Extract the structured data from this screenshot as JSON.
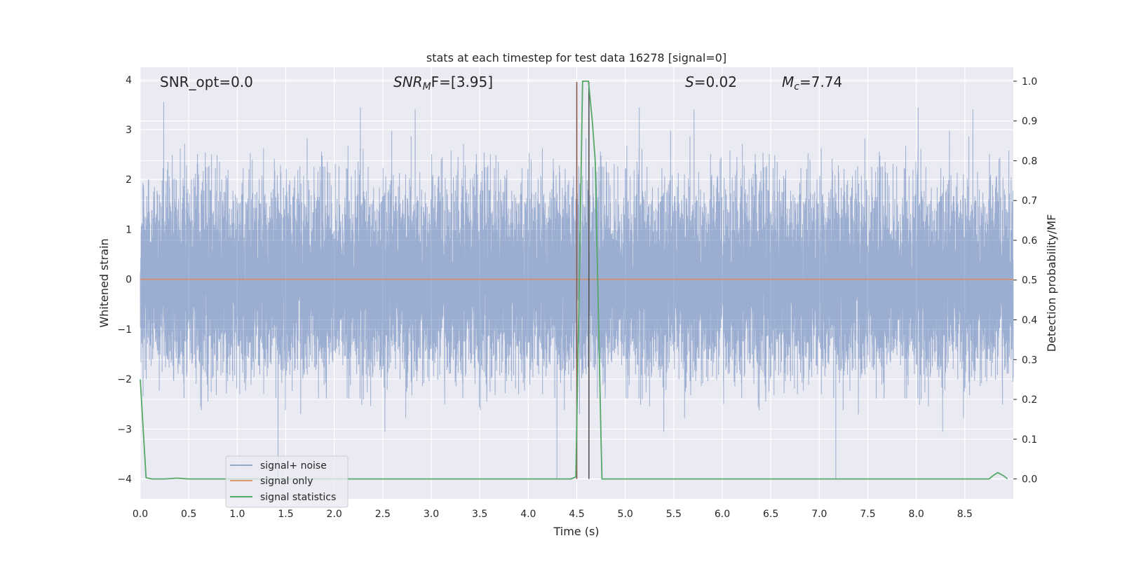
{
  "chart_data": {
    "type": "line",
    "title": "stats at each timestep for test data 16278 [signal=0]",
    "xlabel": "Time (s)",
    "ylabel": "Whitened strain",
    "y2label": "Detection probability/MF",
    "xlim": [
      0.0,
      9.0
    ],
    "ylim": [
      -4.4,
      4.25
    ],
    "y2lim": [
      -0.05,
      1.035
    ],
    "x_ticks": [
      "0.0",
      "0.5",
      "1.0",
      "1.5",
      "2.0",
      "2.5",
      "3.0",
      "3.5",
      "4.0",
      "4.5",
      "5.0",
      "5.5",
      "6.0",
      "6.5",
      "7.0",
      "7.5",
      "8.0",
      "8.5"
    ],
    "y_ticks": [
      "4",
      "3",
      "2",
      "1",
      "0",
      "−1",
      "−2",
      "−3",
      "−4"
    ],
    "y2_ticks": [
      "1.0",
      "0.9",
      "0.8",
      "0.7",
      "0.6",
      "0.5",
      "0.4",
      "0.3",
      "0.2",
      "0.1",
      "0.0"
    ],
    "annotations": {
      "snr_opt": "SNR_opt=0.0",
      "snr_mf_base": "SNR",
      "snr_mf_sub": "M",
      "snr_mf_rest": "F=[3.95]",
      "s_label": "S",
      "s_value": "=0.02",
      "mc_base": "M",
      "mc_sub": "c",
      "mc_value": "=7.74"
    },
    "vlines": [
      {
        "x": 4.5,
        "color": "#8c564b"
      },
      {
        "x": 4.625,
        "color": "#555555"
      }
    ],
    "series": [
      {
        "name": "signal+ noise",
        "color": "#4c72b0",
        "axis": "left",
        "kind": "noise",
        "noise_std": 0.9,
        "peak_min": -4.0,
        "peak_max": 3.9,
        "samples": 16384
      },
      {
        "name": "signal only",
        "color": "#dd8452",
        "axis": "left",
        "x": [
          0.0,
          9.0
        ],
        "y": [
          0.0,
          0.0
        ]
      },
      {
        "name": "signal statistics",
        "color": "#55a868",
        "axis": "right",
        "x": [
          0.0,
          0.06,
          0.12,
          0.25,
          0.38,
          0.5,
          1.0,
          2.0,
          3.0,
          4.0,
          4.44,
          4.49,
          4.53,
          4.56,
          4.6,
          4.62,
          4.66,
          4.69,
          4.75,
          4.76,
          5.0,
          6.0,
          7.0,
          8.0,
          8.75,
          8.8,
          8.84,
          8.9,
          8.94
        ],
        "y": [
          0.25,
          0.003,
          0.0,
          0.0,
          0.002,
          0.0,
          0.0,
          0.0,
          0.0,
          0.0,
          0.0,
          0.005,
          0.55,
          1.0,
          1.0,
          1.0,
          0.9,
          0.8,
          0.1,
          0.0,
          0.0,
          0.0,
          0.0,
          0.0,
          0.0,
          0.01,
          0.016,
          0.008,
          0.0
        ]
      }
    ],
    "legend": {
      "position": "lower-left",
      "entries": [
        "signal+ noise",
        "signal only",
        "signal statistics"
      ]
    }
  }
}
